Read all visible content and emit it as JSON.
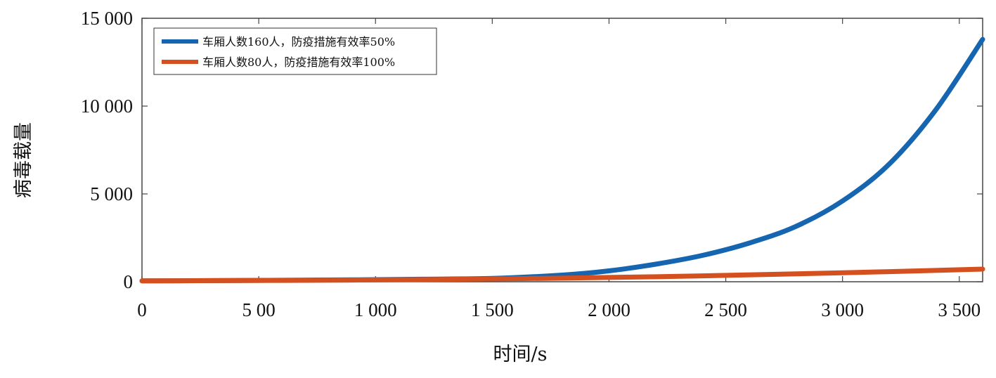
{
  "chart_data": {
    "type": "line",
    "xlabel": "时间/s",
    "ylabel": "病毒载量",
    "xlim": [
      0,
      3600
    ],
    "ylim": [
      0,
      15000
    ],
    "xticks": [
      0,
      500,
      1000,
      1500,
      2000,
      2500,
      3000,
      3500
    ],
    "xtick_labels": [
      "0",
      "5 00",
      "1 000",
      "1 500",
      "2 000",
      "2 500",
      "3 000",
      "3 500"
    ],
    "yticks": [
      0,
      5000,
      10000,
      15000
    ],
    "ytick_labels": [
      "0",
      "5 000",
      "10 000",
      "15 000"
    ],
    "grid": false,
    "legend_position": "top-left",
    "series": [
      {
        "name": "车厢人数160人，防疫措施有效率50%",
        "color": "#1565b0",
        "x": [
          0,
          300,
          600,
          900,
          1200,
          1500,
          1800,
          2000,
          2200,
          2400,
          2600,
          2800,
          3000,
          3200,
          3400,
          3600
        ],
        "y": [
          50,
          65,
          85,
          110,
          145,
          190,
          380,
          620,
          1000,
          1500,
          2200,
          3150,
          4600,
          6700,
          9800,
          13800
        ]
      },
      {
        "name": "车厢人数80人，防疫措施有效率100%",
        "color": "#d4501f",
        "x": [
          0,
          300,
          600,
          900,
          1200,
          1500,
          1800,
          2100,
          2400,
          2700,
          3000,
          3300,
          3600
        ],
        "y": [
          50,
          62,
          78,
          98,
          125,
          160,
          205,
          265,
          335,
          420,
          510,
          610,
          720
        ]
      }
    ]
  }
}
